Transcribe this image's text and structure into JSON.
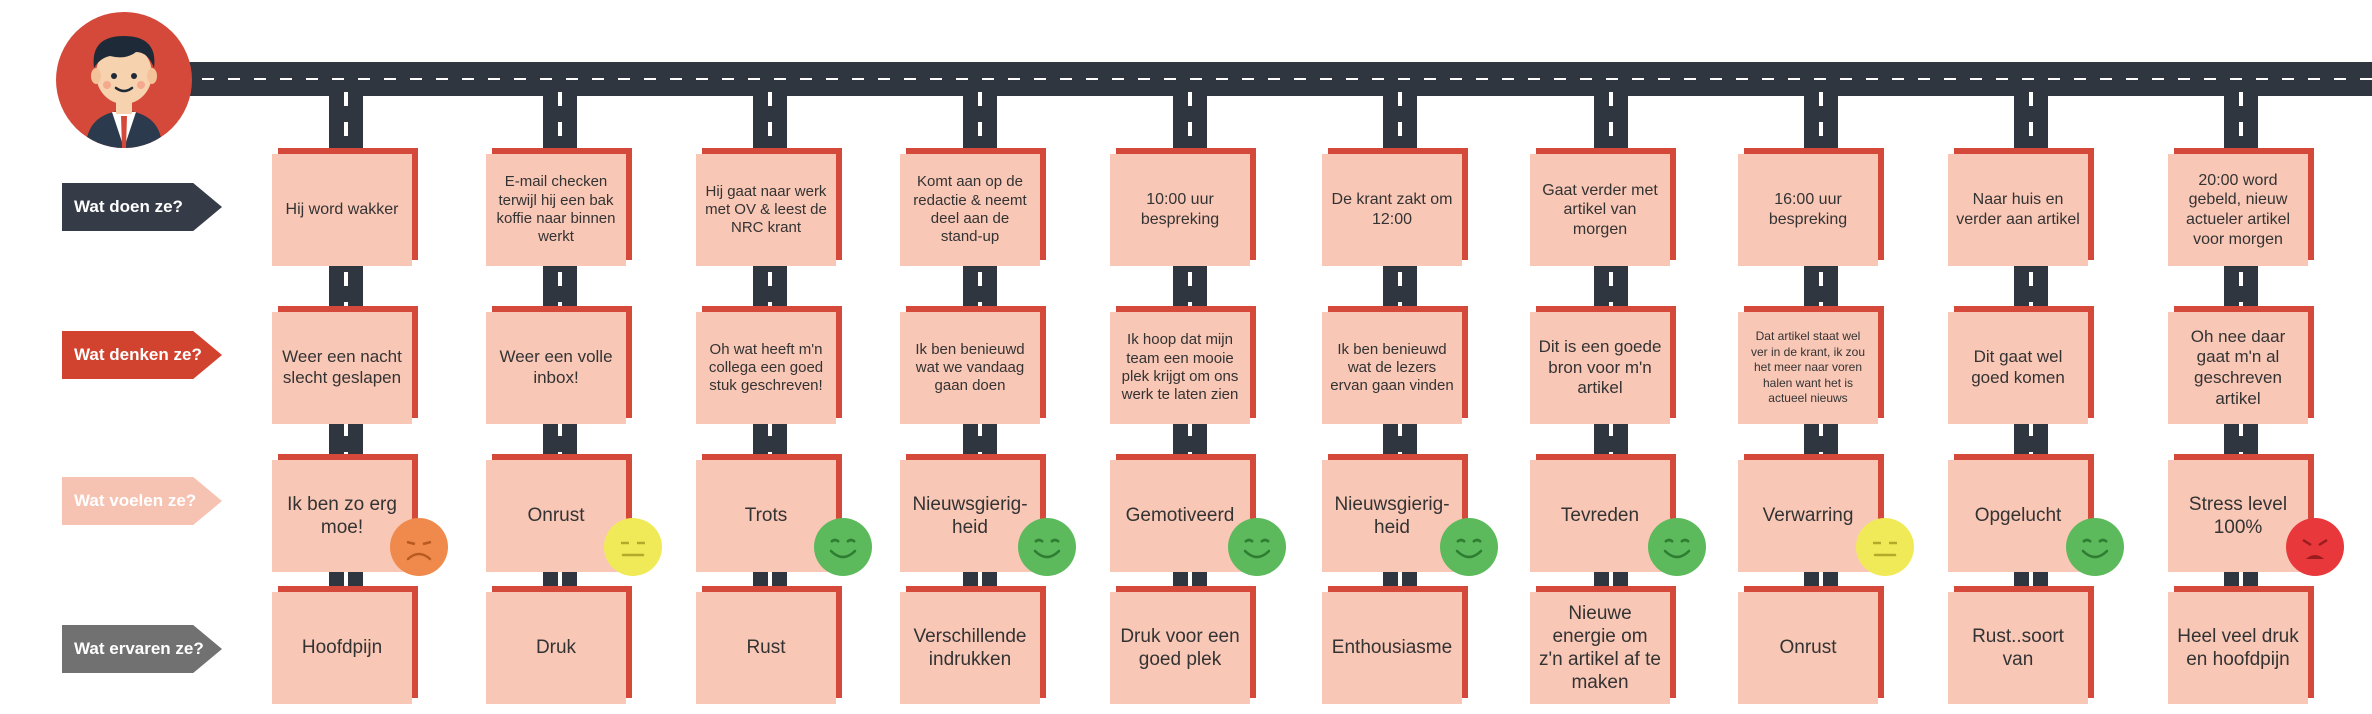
{
  "rows": [
    {
      "label": "Wat doen ze?",
      "color": "#353b47"
    },
    {
      "label": "Wat denken ze?",
      "color": "#d2432f"
    },
    {
      "label": "Wat voelen ze?",
      "color": "#f6c3b3"
    },
    {
      "label": "Wat ervaren ze?",
      "color": "#717171"
    }
  ],
  "colors": {
    "road": "#2f3640",
    "card": "#f9c7b6",
    "card_shadow": "#d5493a",
    "face_happy": "#5cba5c",
    "face_neutral": "#f1ea58",
    "face_sad": "#ef8a4c",
    "face_stressed": "#e8383c"
  },
  "avatar": {
    "icon": "businessman-avatar-icon"
  },
  "steps": [
    {
      "doen": "Hij word wakker",
      "denken": "Weer een nacht slecht geslapen",
      "voelen": "Ik ben zo erg moe!",
      "ervaren": "Hoofdpijn",
      "mood": "sad"
    },
    {
      "doen": "E-mail checken terwijl hij een bak koffie naar binnen werkt",
      "denken": "Weer een volle inbox!",
      "voelen": "Onrust",
      "ervaren": "Druk",
      "mood": "neutral"
    },
    {
      "doen": "Hij gaat naar werk met OV & leest de NRC krant",
      "denken": "Oh wat heeft m'n collega een goed stuk geschreven!",
      "voelen": "Trots",
      "ervaren": "Rust",
      "mood": "happy"
    },
    {
      "doen": "Komt aan op de redactie & neemt deel aan de stand-up",
      "denken": "Ik ben benieuwd wat we vandaag gaan doen",
      "voelen": "Nieuwsgierig-heid",
      "ervaren": "Verschillende indrukken",
      "mood": "happy"
    },
    {
      "doen": "10:00 uur bespreking",
      "denken": "Ik hoop dat mijn team een mooie plek krijgt om ons werk te laten zien",
      "voelen": "Gemotiveerd",
      "ervaren": "Druk voor een goed plek",
      "mood": "happy"
    },
    {
      "doen": "De krant zakt om 12:00",
      "denken": "Ik ben benieuwd wat de lezers ervan gaan vinden",
      "voelen": "Nieuwsgierig-heid",
      "ervaren": "Enthousiasme",
      "mood": "happy"
    },
    {
      "doen": "Gaat verder met artikel van morgen",
      "denken": "Dit is een goede bron voor m'n artikel",
      "voelen": "Tevreden",
      "ervaren": "Nieuwe energie om z'n artikel af te maken",
      "mood": "happy"
    },
    {
      "doen": "16:00 uur bespreking",
      "denken": "Dat artikel staat wel ver in de krant, ik zou het meer naar voren halen want het is actueel nieuws",
      "voelen": "Verwarring",
      "ervaren": "Onrust",
      "mood": "neutral"
    },
    {
      "doen": "Naar huis en verder aan artikel",
      "denken": "Dit gaat wel goed komen",
      "voelen": "Opgelucht",
      "ervaren": "Rust..soort van",
      "mood": "happy"
    },
    {
      "doen": "20:00 word gebeld, nieuw actueler artikel voor morgen",
      "denken": "Oh nee daar gaat m'n al geschreven artikel",
      "voelen": "Stress level 100%",
      "ervaren": "Heel veel druk en hoofdpijn",
      "mood": "stressed"
    }
  ]
}
